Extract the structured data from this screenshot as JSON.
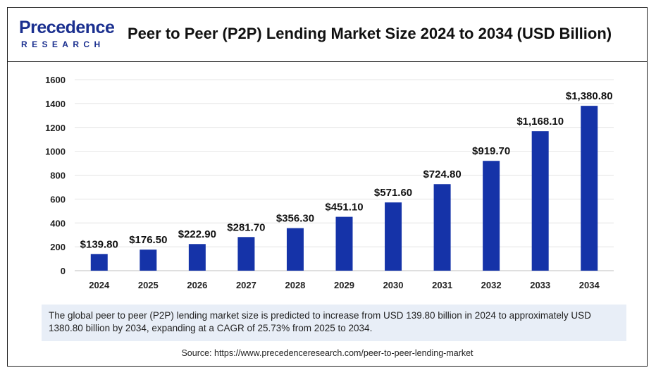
{
  "brand": {
    "logo_main": "Precedence",
    "logo_sub": "RESEARCH",
    "color": "#1a2f8f"
  },
  "header": {
    "title": "Peer to Peer (P2P) Lending Market Size 2024 to 2034 (USD Billion)"
  },
  "chart_data": {
    "type": "bar",
    "title": "Peer to Peer (P2P) Lending Market Size 2024 to 2034 (USD Billion)",
    "xlabel": "",
    "ylabel": "",
    "categories": [
      "2024",
      "2025",
      "2026",
      "2027",
      "2028",
      "2029",
      "2030",
      "2031",
      "2032",
      "2033",
      "2034"
    ],
    "values": [
      139.8,
      176.5,
      222.9,
      281.7,
      356.3,
      451.1,
      571.6,
      724.8,
      919.7,
      1168.1,
      1380.8
    ],
    "data_labels": [
      "$139.80",
      "$176.50",
      "$222.90",
      "$281.70",
      "$356.30",
      "$451.10",
      "$571.60",
      "$724.80",
      "$919.70",
      "$1,168.10",
      "$1,380.80"
    ],
    "y_ticks": [
      "0",
      "200",
      "400",
      "600",
      "800",
      "1000",
      "1200",
      "1400",
      "1600"
    ],
    "ylim": [
      0,
      1600
    ],
    "grid": true,
    "bar_color": "#1533a8",
    "legend": "none"
  },
  "footer": {
    "note": "The global peer to peer (P2P) lending market size is predicted to increase from USD 139.80 billion in 2024 to approximately USD 1380.80 billion by 2034, expanding at a CAGR of 25.73% from 2025 to 2034.",
    "source": "Source: https://www.precedenceresearch.com/peer-to-peer-lending-market"
  }
}
